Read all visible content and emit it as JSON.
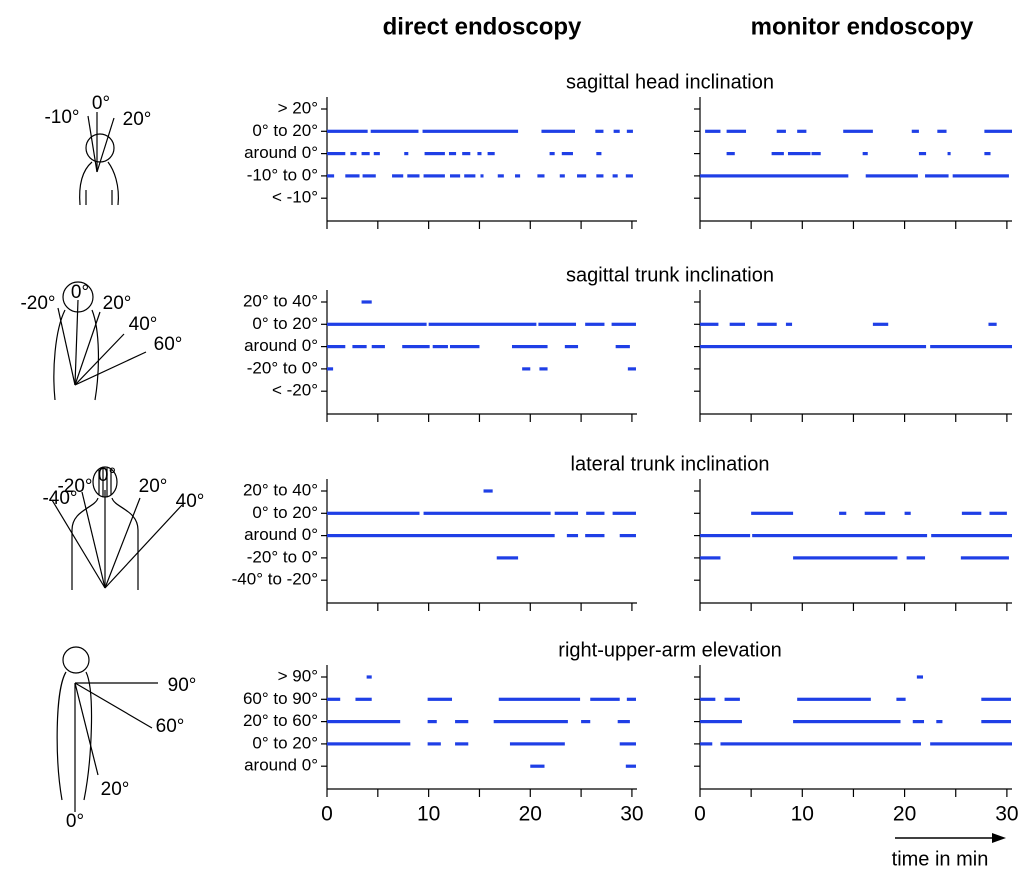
{
  "columns": [
    "direct endoscopy",
    "monitor endoscopy"
  ],
  "x_label": "time in min",
  "chart_data": [
    {
      "type": "timeline",
      "title": "sagittal head inclination",
      "color": "#1f3fe6",
      "angle_labels": [
        "-10°",
        "0°",
        "20°"
      ],
      "categories": [
        "> 20°",
        "0° to 20°",
        "around 0°",
        "-10° to 0°",
        "< -10°"
      ],
      "xlim": [
        0,
        30.5
      ],
      "xticks": [
        0,
        10,
        20,
        30
      ],
      "minor_xticks": [
        5,
        15,
        25
      ],
      "show_xtick_labels": false,
      "panels": [
        {
          "segments": [
            [],
            [
              [
                0,
                4.0
              ],
              [
                4.3,
                9.0
              ],
              [
                9.4,
                18.8
              ],
              [
                21.1,
                24.4
              ],
              [
                26.4,
                27.2
              ],
              [
                28.2,
                28.8
              ],
              [
                29.5,
                30.1
              ]
            ],
            [
              [
                0,
                1.8
              ],
              [
                2.3,
                2.9
              ],
              [
                3.4,
                4.2
              ],
              [
                4.6,
                5.2
              ],
              [
                7.6,
                8.0
              ],
              [
                9.6,
                11.6
              ],
              [
                12.0,
                12.7
              ],
              [
                13.3,
                14.1
              ],
              [
                14.8,
                15.2
              ],
              [
                15.8,
                16.5
              ],
              [
                21.9,
                22.4
              ],
              [
                23.1,
                24.2
              ],
              [
                26.5,
                27.0
              ]
            ],
            [
              [
                0,
                0.7
              ],
              [
                1.8,
                3.2
              ],
              [
                3.5,
                4.8
              ],
              [
                6.4,
                7.5
              ],
              [
                7.9,
                9.1
              ],
              [
                9.5,
                11.6
              ],
              [
                12.1,
                13.1
              ],
              [
                13.5,
                14.6
              ],
              [
                15.1,
                15.4
              ],
              [
                16.8,
                17.4
              ],
              [
                18.5,
                19.0
              ],
              [
                20.7,
                21.4
              ],
              [
                22.9,
                23.4
              ],
              [
                24.6,
                25.5
              ],
              [
                26.5,
                27.2
              ],
              [
                28.1,
                28.6
              ],
              [
                29.4,
                30.1
              ]
            ],
            []
          ]
        },
        {
          "segments": [
            [],
            [
              [
                0.5,
                2.0
              ],
              [
                2.6,
                4.5
              ],
              [
                7.5,
                8.4
              ],
              [
                9.5,
                10.4
              ],
              [
                14.0,
                16.9
              ],
              [
                20.7,
                21.4
              ],
              [
                23.2,
                24.1
              ],
              [
                27.8,
                30.5
              ]
            ],
            [
              [
                2.6,
                3.4
              ],
              [
                7.0,
                8.2
              ],
              [
                8.6,
                10.8
              ],
              [
                10.9,
                11.8
              ],
              [
                15.9,
                16.4
              ],
              [
                21.4,
                22.1
              ],
              [
                24.2,
                24.5
              ],
              [
                27.8,
                28.4
              ]
            ],
            [
              [
                0,
                14.5
              ],
              [
                16.2,
                21.3
              ],
              [
                22.0,
                24.3
              ],
              [
                24.7,
                30.2
              ]
            ],
            []
          ]
        }
      ]
    },
    {
      "type": "timeline",
      "title": "sagittal trunk inclination",
      "color": "#1f3fe6",
      "angle_labels": [
        "-20°",
        "0°",
        "20°",
        "40°",
        "60°"
      ],
      "categories": [
        "20° to 40°",
        "0° to 20°",
        "around 0°",
        "-20° to 0°",
        "< -20°"
      ],
      "xlim": [
        0,
        30.5
      ],
      "xticks": [
        0,
        10,
        20,
        30
      ],
      "minor_xticks": [
        5,
        15,
        25
      ],
      "show_xtick_labels": false,
      "panels": [
        {
          "segments": [
            [
              [
                3.4,
                4.4
              ]
            ],
            [
              [
                0,
                9.8
              ],
              [
                10.0,
                20.6
              ],
              [
                20.8,
                24.5
              ],
              [
                25.4,
                27.3
              ],
              [
                28.0,
                30.4
              ]
            ],
            [
              [
                0,
                1.8
              ],
              [
                2.5,
                3.9
              ],
              [
                4.4,
                5.7
              ],
              [
                7.4,
                10.1
              ],
              [
                10.4,
                11.9
              ],
              [
                12.1,
                15.0
              ],
              [
                18.2,
                21.7
              ],
              [
                23.4,
                24.7
              ],
              [
                28.4,
                29.8
              ]
            ],
            [
              [
                0,
                0.6
              ],
              [
                19.2,
                20.0
              ],
              [
                20.9,
                21.7
              ],
              [
                29.6,
                30.4
              ]
            ],
            []
          ]
        },
        {
          "segments": [
            [],
            [
              [
                0,
                1.8
              ],
              [
                2.9,
                4.4
              ],
              [
                5.6,
                7.5
              ],
              [
                8.4,
                9.0
              ],
              [
                16.9,
                18.4
              ],
              [
                28.2,
                29.0
              ]
            ],
            [
              [
                0,
                22.1
              ],
              [
                22.5,
                30.5
              ]
            ],
            [],
            []
          ]
        }
      ]
    },
    {
      "type": "timeline",
      "title": "lateral trunk inclination",
      "color": "#1f3fe6",
      "angle_labels": [
        "-40°",
        "-20°",
        "0°",
        "20°",
        "40°"
      ],
      "categories": [
        "20° to 40°",
        "0° to 20°",
        "around 0°",
        "-20° to 0°",
        "-40° to -20°"
      ],
      "xlim": [
        0,
        30.5
      ],
      "xticks": [
        0,
        10,
        20,
        30
      ],
      "minor_xticks": [
        5,
        15,
        25
      ],
      "show_xtick_labels": false,
      "panels": [
        {
          "segments": [
            [
              [
                15.4,
                16.3
              ]
            ],
            [
              [
                0,
                9.1
              ],
              [
                9.5,
                22.0
              ],
              [
                22.4,
                24.7
              ],
              [
                25.5,
                27.3
              ],
              [
                28.1,
                30.4
              ]
            ],
            [
              [
                0,
                22.4
              ],
              [
                23.6,
                24.7
              ],
              [
                25.4,
                27.3
              ],
              [
                28.8,
                30.4
              ]
            ],
            [
              [
                16.7,
                18.8
              ]
            ],
            []
          ]
        },
        {
          "segments": [
            [],
            [
              [
                5.0,
                9.1
              ],
              [
                13.6,
                14.3
              ],
              [
                16.1,
                18.1
              ],
              [
                20.0,
                20.6
              ],
              [
                25.6,
                27.5
              ],
              [
                28.3,
                30.0
              ]
            ],
            [
              [
                0,
                4.9
              ],
              [
                5.1,
                22.2
              ],
              [
                22.6,
                30.5
              ]
            ],
            [
              [
                0,
                2.0
              ],
              [
                9.1,
                19.3
              ],
              [
                20.2,
                22.0
              ],
              [
                25.5,
                30.2
              ]
            ],
            []
          ]
        }
      ]
    },
    {
      "type": "timeline",
      "title": "right-upper-arm elevation",
      "color": "#1f3fe6",
      "angle_labels": [
        "90°",
        "60°",
        "20°",
        "0°"
      ],
      "categories": [
        "> 90°",
        "60° to 90°",
        "20° to 60°",
        "0° to 20°",
        "around 0°"
      ],
      "xlim": [
        0,
        30.5
      ],
      "xticks": [
        0,
        10,
        20,
        30
      ],
      "minor_xticks": [
        5,
        15,
        25
      ],
      "show_xtick_labels": true,
      "panels": [
        {
          "segments": [
            [
              [
                3.9,
                4.4
              ]
            ],
            [
              [
                0,
                1.3
              ],
              [
                2.8,
                4.4
              ],
              [
                9.9,
                12.3
              ],
              [
                16.9,
                24.9
              ],
              [
                25.9,
                28.8
              ],
              [
                29.5,
                30.4
              ]
            ],
            [
              [
                0,
                7.2
              ],
              [
                9.9,
                10.8
              ],
              [
                12.6,
                13.9
              ],
              [
                16.4,
                23.7
              ],
              [
                25.0,
                25.9
              ],
              [
                28.6,
                29.8
              ]
            ],
            [
              [
                0,
                8.2
              ],
              [
                9.9,
                11.2
              ],
              [
                12.6,
                13.9
              ],
              [
                18.0,
                23.4
              ],
              [
                28.8,
                30.4
              ]
            ],
            [
              [
                20.0,
                21.4
              ],
              [
                29.4,
                30.4
              ]
            ]
          ]
        },
        {
          "segments": [
            [
              [
                21.2,
                21.8
              ]
            ],
            [
              [
                0,
                1.5
              ],
              [
                2.4,
                3.9
              ],
              [
                9.5,
                16.7
              ],
              [
                19.2,
                20.1
              ],
              [
                27.5,
                30.4
              ]
            ],
            [
              [
                0,
                4.1
              ],
              [
                9.1,
                19.6
              ],
              [
                20.8,
                21.9
              ],
              [
                23.1,
                23.7
              ],
              [
                27.5,
                30.4
              ]
            ],
            [
              [
                0,
                1.2
              ],
              [
                2.0,
                21.6
              ],
              [
                22.5,
                30.5
              ]
            ],
            []
          ]
        }
      ]
    }
  ]
}
